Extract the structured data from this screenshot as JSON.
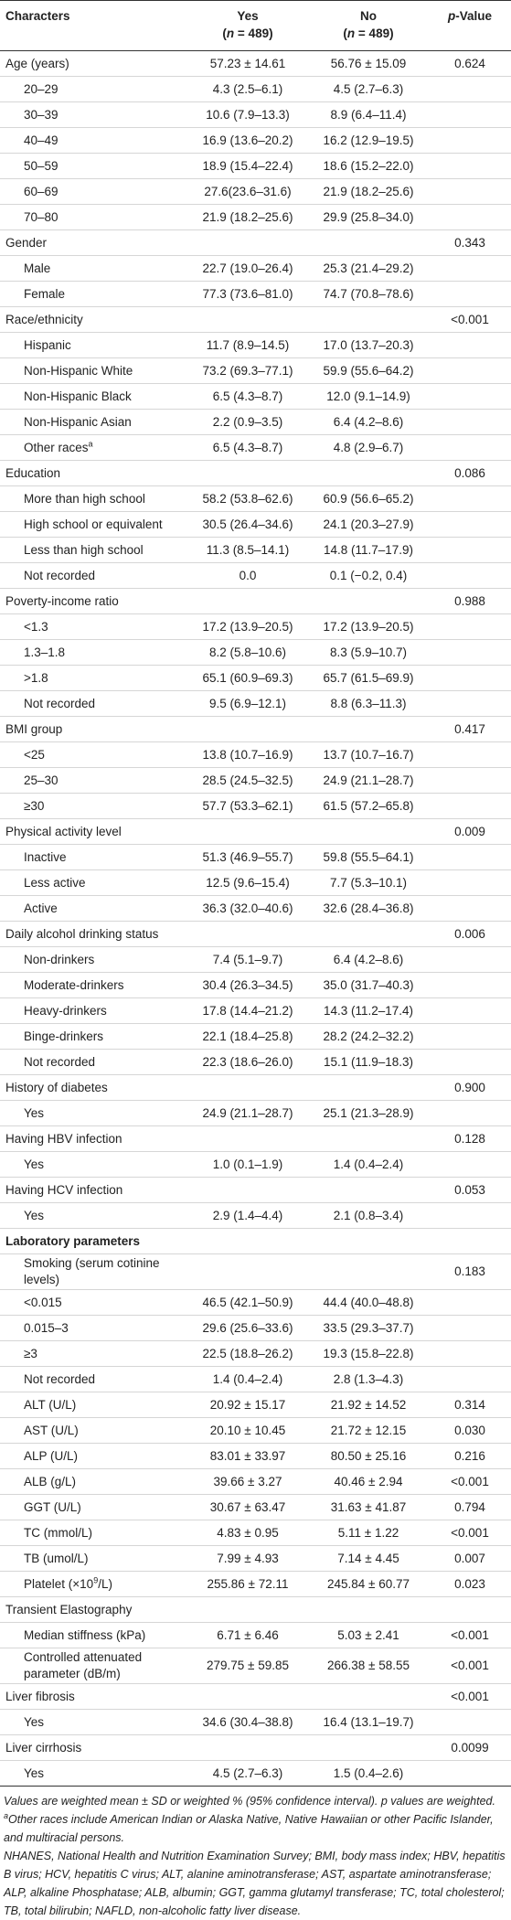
{
  "table": {
    "columns": [
      {
        "title": "Characters"
      },
      {
        "title": "Yes",
        "sub": [
          {
            "text": "("
          },
          {
            "text": "n",
            "style": "italic"
          },
          {
            "text": " = 489)"
          }
        ]
      },
      {
        "title": "No",
        "sub": [
          {
            "text": "("
          },
          {
            "text": "n",
            "style": "italic"
          },
          {
            "text": " = 489)"
          }
        ]
      },
      {
        "title": [
          {
            "text": "p",
            "style": "italic"
          },
          {
            "text": "-Value"
          }
        ]
      }
    ],
    "rows": [
      {
        "label": "Age (years)",
        "yes": "57.23 ± 14.61",
        "no": "56.76 ± 15.09",
        "p": "0.624"
      },
      {
        "label": "20–29",
        "indent": true,
        "yes": "4.3 (2.5–6.1)",
        "no": "4.5 (2.7–6.3)"
      },
      {
        "label": "30–39",
        "indent": true,
        "yes": "10.6 (7.9–13.3)",
        "no": "8.9 (6.4–11.4)"
      },
      {
        "label": "40–49",
        "indent": true,
        "yes": "16.9 (13.6–20.2)",
        "no": "16.2 (12.9–19.5)"
      },
      {
        "label": "50–59",
        "indent": true,
        "yes": "18.9 (15.4–22.4)",
        "no": "18.6 (15.2–22.0)"
      },
      {
        "label": "60–69",
        "indent": true,
        "yes": "27.6(23.6–31.6)",
        "no": "21.9 (18.2–25.6)"
      },
      {
        "label": "70–80",
        "indent": true,
        "yes": "21.9 (18.2–25.6)",
        "no": "29.9 (25.8–34.0)"
      },
      {
        "label": "Gender",
        "p": "0.343"
      },
      {
        "label": "Male",
        "indent": true,
        "yes": "22.7 (19.0–26.4)",
        "no": "25.3 (21.4–29.2)"
      },
      {
        "label": "Female",
        "indent": true,
        "yes": "77.3 (73.6–81.0)",
        "no": "74.7 (70.8–78.6)"
      },
      {
        "label": "Race/ethnicity",
        "p": "<0.001"
      },
      {
        "label": "Hispanic",
        "indent": true,
        "yes": "11.7 (8.9–14.5)",
        "no": "17.0 (13.7–20.3)"
      },
      {
        "label": "Non-Hispanic White",
        "indent": true,
        "yes": "73.2 (69.3–77.1)",
        "no": "59.9 (55.6–64.2)"
      },
      {
        "label": "Non-Hispanic Black",
        "indent": true,
        "yes": "6.5 (4.3–8.7)",
        "no": "12.0 (9.1–14.9)"
      },
      {
        "label": "Non-Hispanic Asian",
        "indent": true,
        "yes": "2.2 (0.9–3.5)",
        "no": "6.4 (4.2–8.6)"
      },
      {
        "label": [
          {
            "text": "Other races"
          },
          {
            "text": "a",
            "style": "sup"
          }
        ],
        "indent": true,
        "yes": "6.5 (4.3–8.7)",
        "no": "4.8 (2.9–6.7)"
      },
      {
        "label": "Education",
        "p": "0.086"
      },
      {
        "label": "More than high school",
        "indent": true,
        "yes": "58.2 (53.8–62.6)",
        "no": "60.9 (56.6–65.2)"
      },
      {
        "label": "High school or equivalent",
        "indent": true,
        "yes": "30.5 (26.4–34.6)",
        "no": "24.1 (20.3–27.9)"
      },
      {
        "label": "Less than high school",
        "indent": true,
        "yes": "11.3 (8.5–14.1)",
        "no": "14.8 (11.7–17.9)"
      },
      {
        "label": "Not recorded",
        "indent": true,
        "yes": "0.0",
        "no": "0.1 (−0.2, 0.4)"
      },
      {
        "label": "Poverty-income ratio",
        "p": "0.988"
      },
      {
        "label": "<1.3",
        "indent": true,
        "yes": "17.2 (13.9–20.5)",
        "no": "17.2 (13.9–20.5)"
      },
      {
        "label": "1.3–1.8",
        "indent": true,
        "yes": "8.2 (5.8–10.6)",
        "no": "8.3 (5.9–10.7)"
      },
      {
        "label": ">1.8",
        "indent": true,
        "yes": "65.1 (60.9–69.3)",
        "no": "65.7 (61.5–69.9)"
      },
      {
        "label": "Not recorded",
        "indent": true,
        "yes": "9.5 (6.9–12.1)",
        "no": "8.8 (6.3–11.3)"
      },
      {
        "label": "BMI group",
        "p": "0.417"
      },
      {
        "label": "<25",
        "indent": true,
        "yes": "13.8 (10.7–16.9)",
        "no": "13.7 (10.7–16.7)"
      },
      {
        "label": "25–30",
        "indent": true,
        "yes": "28.5 (24.5–32.5)",
        "no": "24.9 (21.1–28.7)"
      },
      {
        "label": "≥30",
        "indent": true,
        "yes": "57.7 (53.3–62.1)",
        "no": "61.5 (57.2–65.8)"
      },
      {
        "label": "Physical activity level",
        "p": "0.009"
      },
      {
        "label": "Inactive",
        "indent": true,
        "yes": "51.3 (46.9–55.7)",
        "no": "59.8 (55.5–64.1)"
      },
      {
        "label": "Less active",
        "indent": true,
        "yes": "12.5 (9.6–15.4)",
        "no": "7.7 (5.3–10.1)"
      },
      {
        "label": "Active",
        "indent": true,
        "yes": "36.3 (32.0–40.6)",
        "no": "32.6 (28.4–36.8)"
      },
      {
        "label": "Daily alcohol drinking status",
        "p": "0.006"
      },
      {
        "label": "Non-drinkers",
        "indent": true,
        "yes": "7.4 (5.1–9.7)",
        "no": "6.4 (4.2–8.6)"
      },
      {
        "label": "Moderate-drinkers",
        "indent": true,
        "yes": "30.4 (26.3–34.5)",
        "no": "35.0 (31.7–40.3)"
      },
      {
        "label": "Heavy-drinkers",
        "indent": true,
        "yes": "17.8 (14.4–21.2)",
        "no": "14.3 (11.2–17.4)"
      },
      {
        "label": "Binge-drinkers",
        "indent": true,
        "yes": "22.1 (18.4–25.8)",
        "no": "28.2 (24.2–32.2)"
      },
      {
        "label": "Not recorded",
        "indent": true,
        "yes": "22.3 (18.6–26.0)",
        "no": "15.1 (11.9–18.3)"
      },
      {
        "label": "History of diabetes",
        "p": "0.900"
      },
      {
        "label": "Yes",
        "indent": true,
        "yes": "24.9 (21.1–28.7)",
        "no": "25.1 (21.3–28.9)"
      },
      {
        "label": "Having HBV infection",
        "p": "0.128"
      },
      {
        "label": "Yes",
        "indent": true,
        "yes": "1.0 (0.1–1.9)",
        "no": "1.4 (0.4–2.4)"
      },
      {
        "label": "Having HCV infection",
        "p": "0.053"
      },
      {
        "label": "Yes",
        "indent": true,
        "yes": "2.9 (1.4–4.4)",
        "no": "2.1 (0.8–3.4)"
      },
      {
        "label": "Laboratory parameters",
        "bold": true
      },
      {
        "label": "Smoking (serum cotinine levels)",
        "indent": true,
        "p": "0.183"
      },
      {
        "label": "<0.015",
        "indent": true,
        "yes": "46.5 (42.1–50.9)",
        "no": "44.4 (40.0–48.8)"
      },
      {
        "label": "0.015–3",
        "indent": true,
        "yes": "29.6 (25.6–33.6)",
        "no": "33.5 (29.3–37.7)"
      },
      {
        "label": "≥3",
        "indent": true,
        "yes": "22.5 (18.8–26.2)",
        "no": "19.3 (15.8–22.8)"
      },
      {
        "label": "Not recorded",
        "indent": true,
        "yes": "1.4 (0.4–2.4)",
        "no": "2.8 (1.3–4.3)"
      },
      {
        "label": "ALT (U/L)",
        "indent": true,
        "yes": "20.92 ± 15.17",
        "no": "21.92 ± 14.52",
        "p": "0.314"
      },
      {
        "label": "AST (U/L)",
        "indent": true,
        "yes": "20.10 ± 10.45",
        "no": "21.72 ± 12.15",
        "p": "0.030"
      },
      {
        "label": "ALP (U/L)",
        "indent": true,
        "yes": "83.01 ± 33.97",
        "no": "80.50 ± 25.16",
        "p": "0.216"
      },
      {
        "label": "ALB (g/L)",
        "indent": true,
        "yes": "39.66 ± 3.27",
        "no": "40.46 ± 2.94",
        "p": "<0.001"
      },
      {
        "label": "GGT (U/L)",
        "indent": true,
        "yes": "30.67 ± 63.47",
        "no": "31.63 ± 41.87",
        "p": "0.794"
      },
      {
        "label": "TC (mmol/L)",
        "indent": true,
        "yes": "4.83 ± 0.95",
        "no": "5.11 ± 1.22",
        "p": "<0.001"
      },
      {
        "label": "TB (umol/L)",
        "indent": true,
        "yes": "7.99 ± 4.93",
        "no": "7.14 ± 4.45",
        "p": "0.007"
      },
      {
        "label": [
          {
            "text": "Platelet (×10"
          },
          {
            "text": "9",
            "style": "sup"
          },
          {
            "text": "/L)"
          }
        ],
        "indent": true,
        "yes": "255.86 ± 72.11",
        "no": "245.84 ± 60.77",
        "p": "0.023"
      },
      {
        "label": "Transient Elastography"
      },
      {
        "label": "Median stiffness (kPa)",
        "indent": true,
        "yes": "6.71 ± 6.46",
        "no": "5.03 ± 2.41",
        "p": "<0.001"
      },
      {
        "label": "Controlled attenuated parameter (dB/m)",
        "indent": true,
        "yes": "279.75 ± 59.85",
        "no": "266.38 ± 58.55",
        "p": "<0.001"
      },
      {
        "label": "Liver fibrosis",
        "p": "<0.001"
      },
      {
        "label": "Yes",
        "indent": true,
        "yes": "34.6 (30.4–38.8)",
        "no": "16.4 (13.1–19.7)"
      },
      {
        "label": "Liver cirrhosis",
        "p": "0.0099"
      },
      {
        "label": "Yes",
        "indent": true,
        "yes": "4.5 (2.7–6.3)",
        "no": "1.5 (0.4–2.6)"
      }
    ],
    "footnotes": [
      [
        {
          "text": "Values are weighted mean ± SD or weighted % (95% confidence interval). p values are weighted. "
        },
        {
          "text": "a",
          "style": "sup"
        },
        {
          "text": "Other races include American Indian or Alaska Native, Native Hawaiian or other Pacific Islander, and multiracial persons."
        }
      ],
      [
        {
          "text": "NHANES, National Health and Nutrition Examination Survey; BMI, body mass index; HBV, hepatitis B virus; HCV, hepatitis C virus; ALT, alanine aminotransferase; AST, aspartate aminotransferase; ALP, alkaline Phosphatase; ALB, albumin; GGT, gamma glutamyl transferase; TC, total cholesterol; TB, total bilirubin; NAFLD, non-alcoholic fatty liver disease."
        }
      ]
    ]
  }
}
